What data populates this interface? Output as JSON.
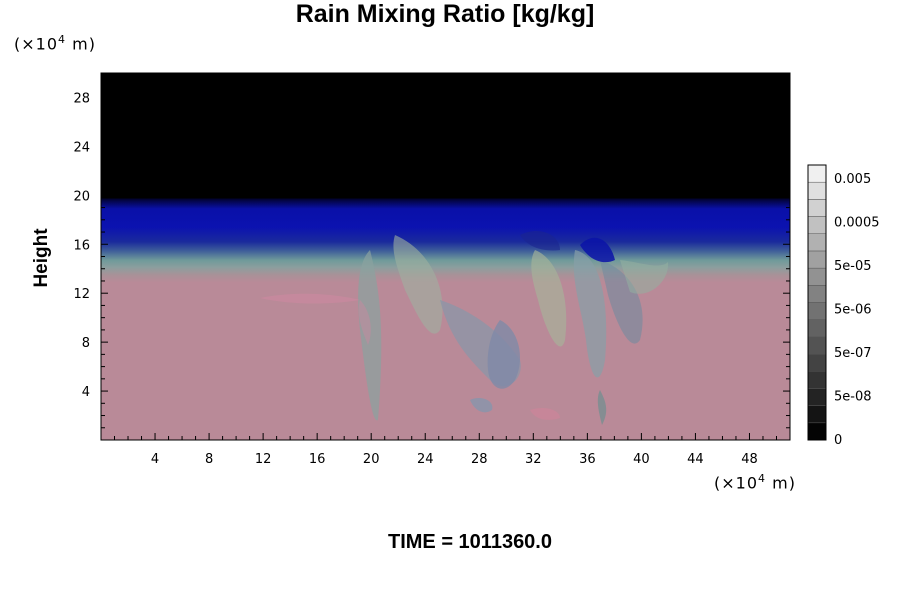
{
  "chart_data": {
    "type": "heatmap",
    "title": "Rain Mixing Ratio [kg/kg]",
    "ylabel": "Height",
    "xlabel": "",
    "y_unit": "(×10⁴ m)",
    "x_unit": "(×10⁴ m)",
    "xlim": [
      0,
      51
    ],
    "ylim": [
      0,
      30
    ],
    "x_ticks": [
      4,
      8,
      12,
      16,
      20,
      24,
      28,
      32,
      36,
      40,
      44,
      48
    ],
    "y_ticks": [
      4,
      8,
      12,
      16,
      20,
      24,
      28
    ],
    "colorbar": {
      "labels": [
        "0.005",
        "0.0005",
        "5e-05",
        "5e-06",
        "5e-07",
        "5e-08",
        "0"
      ],
      "levels": 16
    },
    "layers": [
      {
        "from": 0,
        "to": 13.5,
        "fill": "pink-mauve (#b98a98)"
      },
      {
        "from": 13.5,
        "to": 15.8,
        "fill": "teal-grey transition"
      },
      {
        "from": 15.8,
        "to": 19.8,
        "fill": "blue (#0a10a8)"
      },
      {
        "from": 19.8,
        "to": 30,
        "fill": "black (#000000)"
      }
    ],
    "colors": {
      "low": "#b98a98",
      "mid": "#7a9c9c",
      "upper": "#0a10a8",
      "top": "#000000"
    }
  },
  "footer": {
    "time_label": "TIME = 1011360.0"
  }
}
